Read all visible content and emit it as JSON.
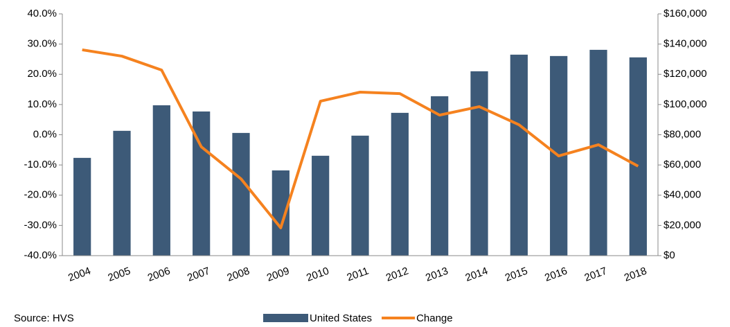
{
  "chart_data": {
    "type": "bar-line",
    "source": "Source: HVS",
    "categories": [
      "2004",
      "2005",
      "2006",
      "2007",
      "2008",
      "2009",
      "2010",
      "2011",
      "2012",
      "2013",
      "2014",
      "2015",
      "2016",
      "2017",
      "2018"
    ],
    "series": [
      {
        "name": "United States",
        "type": "bar",
        "axis": "y2",
        "color": "#3d5a78",
        "values": [
          64700,
          82600,
          99500,
          95400,
          81200,
          56400,
          66100,
          79400,
          94500,
          105500,
          122000,
          133000,
          132100,
          136200,
          131200
        ]
      },
      {
        "name": "Change",
        "type": "line",
        "color": "#f5821f",
        "values": [
          28.1,
          26.0,
          21.4,
          -4.0,
          -14.6,
          -30.8,
          11.1,
          14.1,
          13.6,
          6.5,
          9.3,
          3.3,
          -7.0,
          -3.3,
          -10.4
        ]
      }
    ],
    "ylim": [
      -40,
      40
    ],
    "yticks": [
      {
        "value": 40,
        "label": "40.0%"
      },
      {
        "value": 30,
        "label": "30.0%"
      },
      {
        "value": 20,
        "label": "20.0%"
      },
      {
        "value": 10,
        "label": "10.0%"
      },
      {
        "value": 0,
        "label": "0.0%"
      },
      {
        "value": -10,
        "label": "-10.0%"
      },
      {
        "value": -20,
        "label": "-20.0%"
      },
      {
        "value": -30,
        "label": "-30.0%"
      },
      {
        "value": -40,
        "label": "-40.0%"
      }
    ],
    "y2lim": [
      0,
      160000
    ],
    "y2ticks": [
      {
        "value": 160000,
        "label": "$160,000"
      },
      {
        "value": 140000,
        "label": "$140,000"
      },
      {
        "value": 120000,
        "label": "$120,000"
      },
      {
        "value": 100000,
        "label": "$100,000"
      },
      {
        "value": 80000,
        "label": "$80,000"
      },
      {
        "value": 60000,
        "label": "$60,000"
      },
      {
        "value": 40000,
        "label": "$40,000"
      },
      {
        "value": 20000,
        "label": "$20,000"
      },
      {
        "value": 0,
        "label": "$0"
      }
    ],
    "grid": false
  }
}
